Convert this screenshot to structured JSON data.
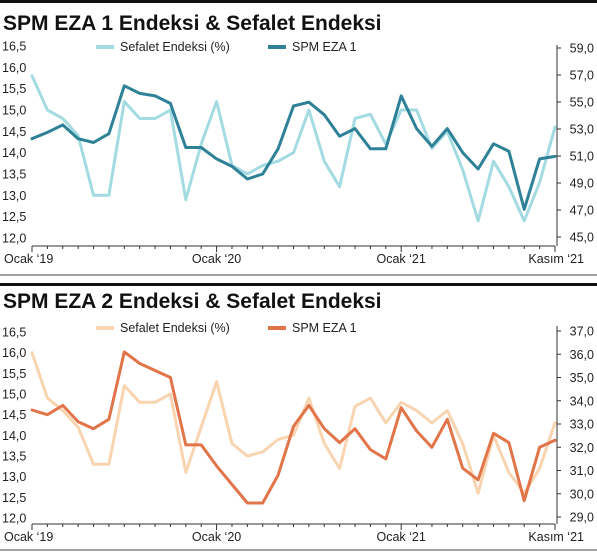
{
  "chart_data": [
    {
      "type": "line",
      "title": "SPM EZA 1 Endeksi & Sefalet Endeksi",
      "x_tick_labels": [
        "Ocak ‘19",
        "Ocak ‘20",
        "Ocak ‘21",
        "Kasım ‘21"
      ],
      "x_tick_index": [
        0,
        12,
        24,
        34
      ],
      "left_axis": {
        "ylim": [
          12.0,
          16.5
        ],
        "ticks": [
          "12,0",
          "12,5",
          "13,0",
          "13,5",
          "14,0",
          "14,5",
          "15,0",
          "15,5",
          "16,0",
          "16,5"
        ]
      },
      "right_axis": {
        "ylim": [
          45.0,
          60.0
        ],
        "ticks": [
          "45,0",
          "47,0",
          "49,0",
          "51,0",
          "53,0",
          "55,0",
          "57,0",
          "59,0"
        ]
      },
      "legend_position": "top",
      "grid": false,
      "series": [
        {
          "name": "Sefalet Endeksi (%)",
          "axis": "left",
          "color": "#a4dbe2",
          "values": [
            15.8,
            15.0,
            14.8,
            14.4,
            13.0,
            13.0,
            15.2,
            14.8,
            14.8,
            15.0,
            12.9,
            14.2,
            15.2,
            13.7,
            13.5,
            13.7,
            13.8,
            14.0,
            15.0,
            13.8,
            13.2,
            14.8,
            14.9,
            14.2,
            15.0,
            15.0,
            14.1,
            14.5,
            13.6,
            12.4,
            13.8,
            13.2,
            12.4,
            13.3,
            14.6
          ]
        },
        {
          "name": "SPM EZA 1",
          "axis": "right",
          "color": "#2e8197",
          "values": [
            52.8,
            53.3,
            53.9,
            52.8,
            52.5,
            53.2,
            57.0,
            56.4,
            56.2,
            55.6,
            52.1,
            52.1,
            51.2,
            50.6,
            49.6,
            50.0,
            52.0,
            55.4,
            55.7,
            54.7,
            53.0,
            53.6,
            52.0,
            52.0,
            56.2,
            53.6,
            52.2,
            53.6,
            51.7,
            50.4,
            52.4,
            51.8,
            47.2,
            51.2,
            51.4
          ]
        }
      ]
    },
    {
      "type": "line",
      "title": "SPM EZA 2 Endeksi & Sefalet Endeksi",
      "x_tick_labels": [
        "Ocak ‘19",
        "Ocak ‘20",
        "Ocak ‘21",
        "Kasım ‘21"
      ],
      "x_tick_index": [
        0,
        12,
        24,
        34
      ],
      "left_axis": {
        "ylim": [
          12.0,
          16.5
        ],
        "ticks": [
          "12,0",
          "12,5",
          "13,0",
          "13,5",
          "14,0",
          "14,5",
          "15,0",
          "15,5",
          "16,0",
          "16,5"
        ]
      },
      "right_axis": {
        "ylim": [
          29.0,
          37.0
        ],
        "ticks": [
          "29,0",
          "30,0",
          "31,0",
          "32,0",
          "33,0",
          "34,0",
          "35,0",
          "36,0",
          "37,0"
        ]
      },
      "legend_position": "top",
      "grid": false,
      "series": [
        {
          "name": "Sefalet Endeksi (%)",
          "axis": "left",
          "color": "#f9d4b0",
          "values": [
            16.0,
            14.9,
            14.6,
            14.2,
            13.3,
            13.3,
            15.2,
            14.8,
            14.8,
            15.0,
            13.1,
            14.2,
            15.3,
            13.8,
            13.5,
            13.6,
            13.9,
            14.0,
            14.9,
            13.8,
            13.2,
            14.7,
            14.9,
            14.3,
            14.8,
            14.6,
            14.3,
            14.6,
            13.8,
            12.6,
            14.0,
            13.1,
            12.6,
            13.2,
            14.3
          ]
        },
        {
          "name": "SPM EZA 1",
          "axis": "right",
          "color": "#e2744a",
          "values": [
            33.6,
            33.4,
            33.8,
            33.1,
            32.8,
            33.2,
            36.1,
            35.6,
            35.3,
            35.0,
            32.1,
            32.1,
            31.2,
            30.4,
            29.6,
            29.6,
            30.8,
            32.9,
            33.8,
            32.8,
            32.2,
            32.8,
            31.9,
            31.5,
            33.7,
            32.7,
            32.0,
            33.2,
            31.1,
            30.6,
            32.6,
            32.2,
            29.7,
            32.0,
            32.3
          ]
        }
      ]
    }
  ]
}
